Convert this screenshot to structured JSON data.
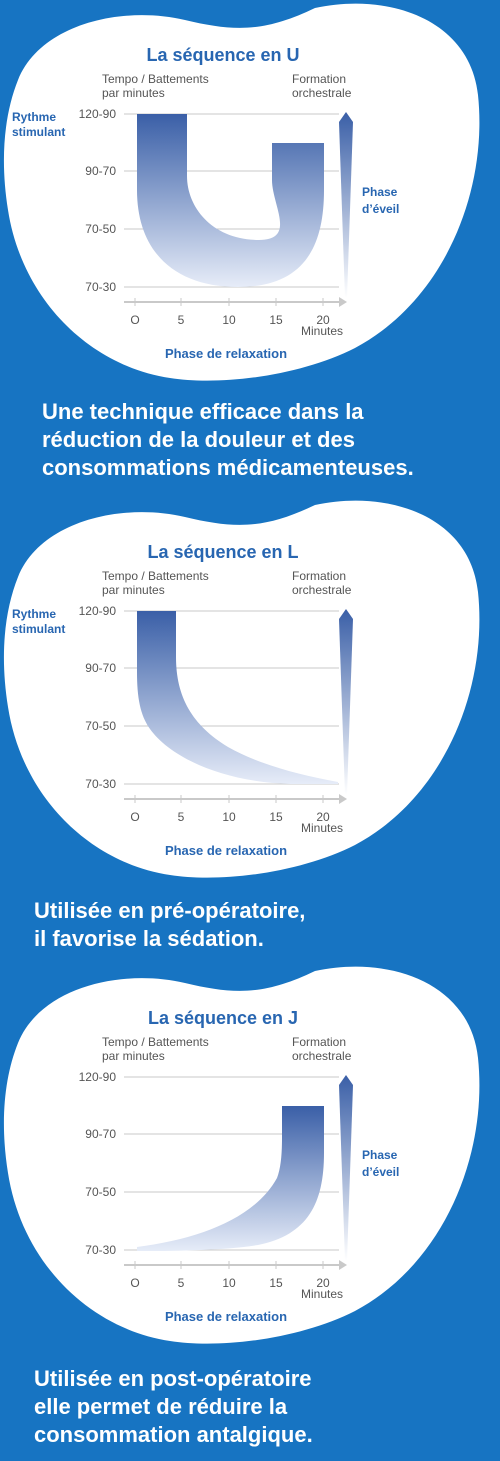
{
  "colors": {
    "background": "#1774c2",
    "card": "#ffffff",
    "accent": "#2866b1",
    "band_dark": "#3a5fa7",
    "band_light": "#e6ecf8",
    "grid": "#c9c9c9",
    "axis_text": "#555555"
  },
  "axis": {
    "y_title": [
      "Tempo / Battements",
      "par minutes"
    ],
    "right_title": [
      "Formation",
      "orchestrale"
    ],
    "y_ticks": [
      "120-90",
      "90-70",
      "70-50",
      "70-30"
    ],
    "x_ticks": [
      "O",
      "5",
      "10",
      "15",
      "20"
    ],
    "x_unit": "Minutes",
    "x_phase": "Phase de relaxation",
    "rythme": [
      "Rythme",
      "stimulant"
    ],
    "eveil": [
      "Phase",
      "d’éveil"
    ]
  },
  "panels": [
    {
      "title": "La séquence en U",
      "shape": "U",
      "show_rythme": true,
      "show_eveil": true,
      "caption": [
        "Une technique efficace dans la",
        "réduction de la douleur et des",
        "consommations médicamenteuses."
      ]
    },
    {
      "title": "La séquence en L",
      "shape": "L",
      "show_rythme": true,
      "show_eveil": false,
      "caption": [
        "Utilisée en pré-opératoire,",
        "il favorise la sédation."
      ]
    },
    {
      "title": "La séquence en J",
      "shape": "J",
      "show_rythme": false,
      "show_eveil": true,
      "caption": [
        "Utilisée en post-opératoire",
        "elle permet de réduire la",
        "consommation antalgique."
      ]
    }
  ]
}
